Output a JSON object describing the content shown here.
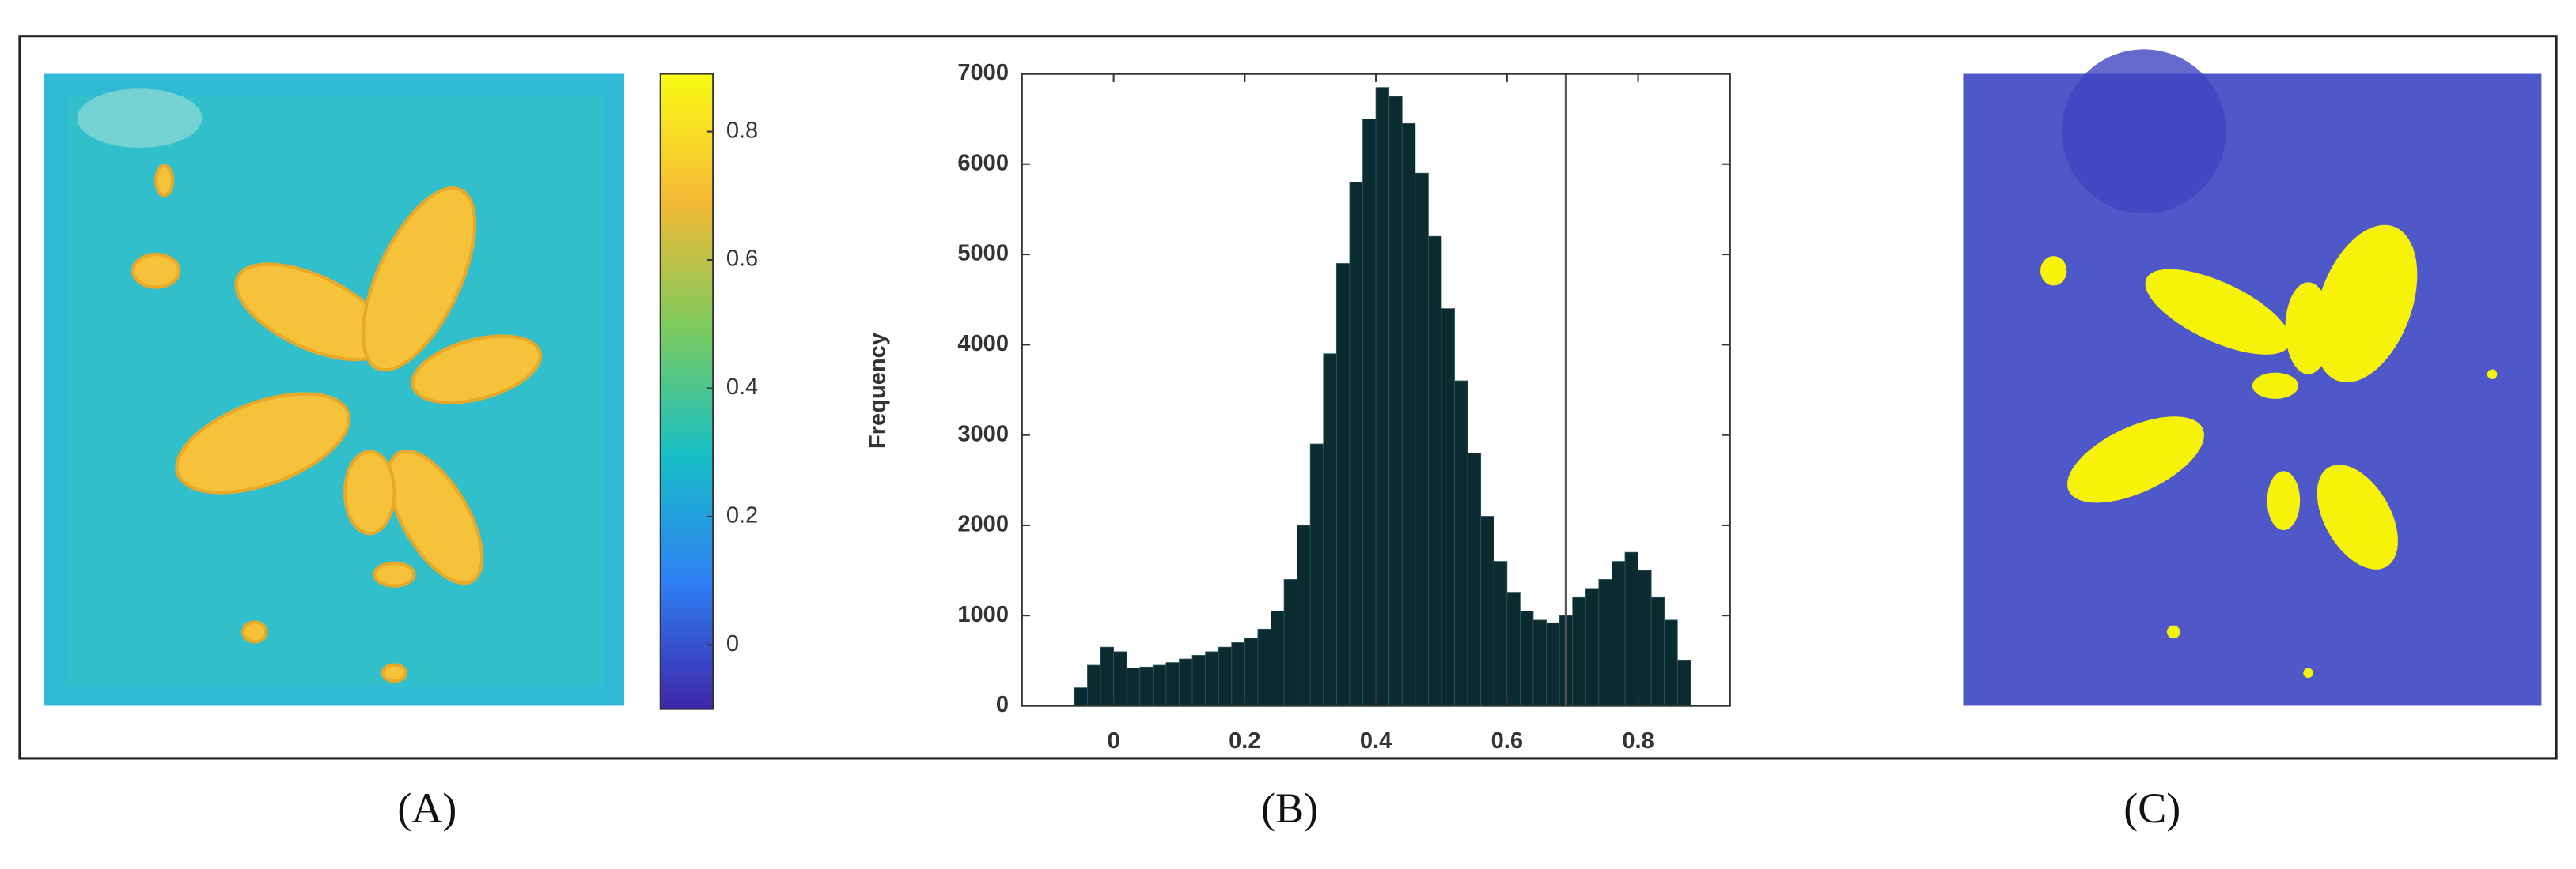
{
  "chart_data": [
    {
      "type": "colorbar",
      "caption": "(A)",
      "colormap": [
        "#3e26a8",
        "#2f7ff4",
        "#17bfc6",
        "#7ccb5e",
        "#f5b935",
        "#f9fb15"
      ],
      "ylim": [
        -0.1,
        0.89
      ],
      "yticks": [
        0,
        0.2,
        0.4,
        0.6,
        0.8
      ]
    },
    {
      "type": "histogram",
      "caption": "(B)",
      "ylabel": "Frequency",
      "color": "#0b2b30",
      "bins": [
        -0.06,
        -0.04,
        -0.02,
        0,
        0.02,
        0.04,
        0.06,
        0.08,
        0.1,
        0.12,
        0.14,
        0.16,
        0.18,
        0.2,
        0.22,
        0.24,
        0.26,
        0.28,
        0.3,
        0.32,
        0.34,
        0.36,
        0.38,
        0.4,
        0.42,
        0.44,
        0.46,
        0.48,
        0.5,
        0.52,
        0.54,
        0.56,
        0.58,
        0.6,
        0.62,
        0.64,
        0.66,
        0.68,
        0.7,
        0.72,
        0.74,
        0.76,
        0.78,
        0.8,
        0.82,
        0.84,
        0.86,
        0.88
      ],
      "values": [
        200,
        450,
        650,
        600,
        420,
        430,
        450,
        480,
        520,
        560,
        600,
        650,
        700,
        750,
        850,
        1050,
        1400,
        2000,
        2900,
        3900,
        4900,
        5800,
        6500,
        6850,
        6750,
        6450,
        5900,
        5200,
        4400,
        3600,
        2800,
        2100,
        1600,
        1250,
        1050,
        950,
        920,
        1000,
        1200,
        1300,
        1400,
        1600,
        1700,
        1500,
        1200,
        950,
        500
      ],
      "xlim": [
        -0.14,
        0.94
      ],
      "xticks": [
        0,
        0.2,
        0.4,
        0.6,
        0.8
      ],
      "ylim": [
        0,
        7000
      ],
      "yticks": [
        0,
        1000,
        2000,
        3000,
        4000,
        5000,
        6000,
        7000
      ],
      "threshold": 0.69
    },
    {
      "type": "image",
      "caption": "(C)"
    }
  ]
}
